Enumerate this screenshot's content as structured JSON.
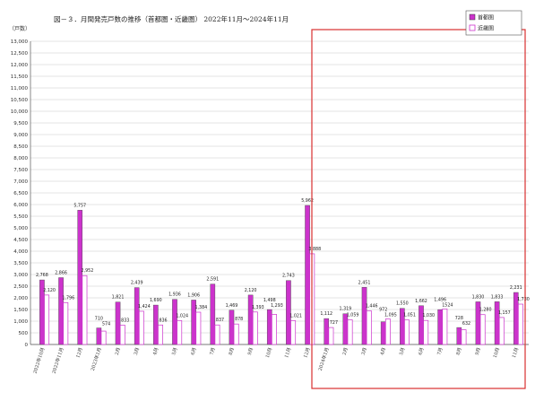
{
  "chart_data": {
    "type": "bar",
    "title": "図－３．月間発売戸数の推移（首都圏・近畿圏） 2022年11月～2024年11月",
    "ylabel": "（戸数）",
    "ylim": [
      0,
      13000
    ],
    "yticks": [
      "0",
      "500",
      "1,000",
      "1,500",
      "2,000",
      "2,500",
      "3,000",
      "3,500",
      "4,000",
      "4,500",
      "5,000",
      "5,500",
      "6,000",
      "6,500",
      "7,000",
      "7,500",
      "8,000",
      "8,500",
      "9,000",
      "9,500",
      "10,000",
      "10,500",
      "11,000",
      "11,500",
      "12,000",
      "12,500",
      "13,000"
    ],
    "grid": true,
    "legend": "top-right",
    "categories": [
      "2022年10月",
      "2022年11月",
      "12月",
      "2023年1月",
      "2月",
      "3月",
      "4月",
      "5月",
      "6月",
      "7月",
      "8月",
      "9月",
      "10月",
      "11月",
      "12月",
      "2024年1月",
      "2月",
      "3月",
      "4月",
      "5月",
      "6月",
      "7月",
      "8月",
      "9月",
      "10月",
      "11月"
    ],
    "series": [
      {
        "name": "首都圏",
        "color": "#cc33cc",
        "values": [
          2768,
          2866,
          5757,
          710,
          1821,
          2439,
          1690,
          1936,
          1906,
          2591,
          1469,
          2120,
          1498,
          2743,
          5962,
          1112,
          1319,
          2451,
          972,
          1550,
          1662,
          1496,
          728,
          1830,
          1833,
          2231
        ],
        "labels": [
          "2,768",
          "2,866",
          "5,757",
          "710",
          "1,821",
          "2,439",
          "1,690",
          "1,936",
          "1,906",
          "2,591",
          "1,469",
          "2,120",
          "1,498",
          "2,743",
          "5,962",
          "1,112",
          "1,319",
          "2,451",
          "972",
          "1,550",
          "1,662",
          "1,496",
          "728",
          "1,830",
          "1,833",
          "2,231"
        ]
      },
      {
        "name": "近畿圏",
        "color": "#ffffff",
        "stroke": "#cc33cc",
        "values": [
          2120,
          1796,
          2952,
          574,
          833,
          1424,
          836,
          1024,
          1384,
          837,
          878,
          1393,
          1293,
          1021,
          3888,
          727,
          1059,
          1446,
          1095,
          1051,
          1030,
          1524,
          632,
          1280,
          1157,
          1730
        ],
        "labels": [
          "2,120",
          "1,796",
          "2,952",
          "574",
          "833",
          "1,424",
          "836",
          "1,024",
          "1,384",
          "837",
          "878",
          "1,393",
          "1,293",
          "1,021",
          "3,888",
          "727",
          "1,059",
          "1,446",
          "1,095",
          "1,051",
          "1,030",
          "1524",
          "632",
          "1,280",
          "1,157",
          "1,730"
        ]
      }
    ]
  },
  "colors": {
    "highlight_box": "#d93030",
    "bar_accent": "#cc33cc"
  }
}
